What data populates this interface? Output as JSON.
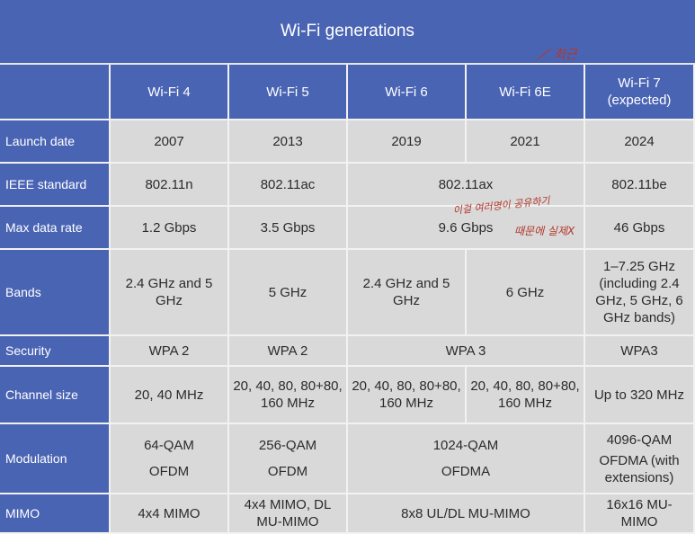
{
  "title": "Wi-Fi generations",
  "columns": [
    "Wi-Fi 4",
    "Wi-Fi 5",
    "Wi-Fi 6",
    "Wi-Fi 6E",
    "Wi-Fi 7\n(expected)"
  ],
  "rows": {
    "launch_date": {
      "label": "Launch date",
      "values": [
        "2007",
        "2013",
        "2019",
        "2021",
        "2024"
      ]
    },
    "ieee": {
      "label": "IEEE standard",
      "wifi4": "802.11n",
      "wifi5": "802.11ac",
      "wifi6_6e": "802.11ax",
      "wifi7": "802.11be"
    },
    "max_rate": {
      "label": "Max data rate",
      "wifi4": "1.2 Gbps",
      "wifi5": "3.5 Gbps",
      "wifi6_6e": "9.6 Gbps",
      "wifi7": "46 Gbps"
    },
    "bands": {
      "label": "Bands",
      "values": [
        "2.4 GHz and 5 GHz",
        "5 GHz",
        "2.4 GHz and 5 GHz",
        "6 GHz",
        "1–7.25 GHz (including 2.4 GHz, 5 GHz, 6 GHz bands)"
      ]
    },
    "security": {
      "label": "Security",
      "wifi4": "WPA 2",
      "wifi5": "WPA 2",
      "wifi6_6e": "WPA 3",
      "wifi7": "WPA3"
    },
    "channel": {
      "label": "Channel size",
      "values": [
        "20, 40 MHz",
        "20, 40, 80, 80+80, 160 MHz",
        "20, 40, 80, 80+80, 160 MHz",
        "20, 40, 80, 80+80, 160 MHz",
        "Up to 320 MHz"
      ]
    },
    "modulation": {
      "label": "Modulation",
      "wifi4": [
        "64-QAM",
        "OFDM"
      ],
      "wifi5": [
        "256-QAM",
        "OFDM"
      ],
      "wifi6_6e": [
        "1024-QAM",
        "OFDMA"
      ],
      "wifi7": [
        "4096-QAM",
        "OFDMA (with extensions)"
      ]
    },
    "mimo": {
      "label": "MIMO",
      "wifi4": "4x4 MIMO",
      "wifi5": "4x4 MIMO, DL MU-MIMO",
      "wifi6_6e": "8x8 UL/DL MU-MIMO",
      "wifi7": "16x16 MU-MIMO"
    }
  },
  "annotations": {
    "top": "최근",
    "middle_line1": "이걸 여러명이 공유하기",
    "middle_line2": "때문에 실제X",
    "color": "#b3362b"
  },
  "colors": {
    "header_blue": "#4a64b4",
    "cell_gray": "#d9d9d9",
    "grid_white": "#f2f2f2"
  }
}
